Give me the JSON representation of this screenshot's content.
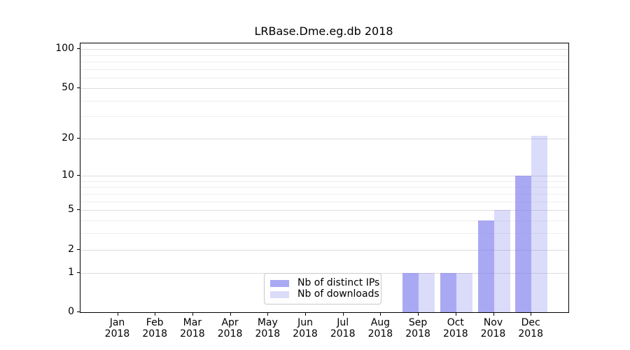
{
  "chart_data": {
    "type": "bar",
    "title": "LRBase.Dme.eg.db 2018",
    "categories": [
      "Jan",
      "Feb",
      "Mar",
      "Apr",
      "May",
      "Jun",
      "Jul",
      "Aug",
      "Sep",
      "Oct",
      "Nov",
      "Dec"
    ],
    "x_year_label": "2018",
    "series": [
      {
        "name": "Nb of distinct IPs",
        "color": "rgba(125,125,237,0.66)",
        "color_on_white": "#a9a9f3",
        "values": [
          0,
          0,
          0,
          0,
          0,
          0,
          0,
          0,
          1,
          1,
          4,
          10
        ]
      },
      {
        "name": "Nb of downloads",
        "color": "rgba(125,125,237,0.28)",
        "color_on_white": "#dadafa",
        "values": [
          0,
          0,
          0,
          0,
          0,
          0,
          0,
          0,
          1,
          1,
          5,
          21
        ]
      }
    ],
    "xlabel": "",
    "ylabel": "",
    "yscale": "log10(value+1)",
    "ylim": [
      0,
      111
    ],
    "yticks": [
      0,
      1,
      2,
      5,
      10,
      20,
      50,
      100
    ],
    "minor_gridlines": [
      3,
      4,
      6,
      7,
      8,
      9,
      30,
      40,
      60,
      70,
      80,
      90
    ],
    "grid": true,
    "legend_position": "lower center",
    "colors": {
      "grid_major": "#dcdcdc",
      "grid_minor": "#efefef",
      "axis": "#000000",
      "background": "#ffffff",
      "legend_border": "#c9c9c9"
    }
  }
}
